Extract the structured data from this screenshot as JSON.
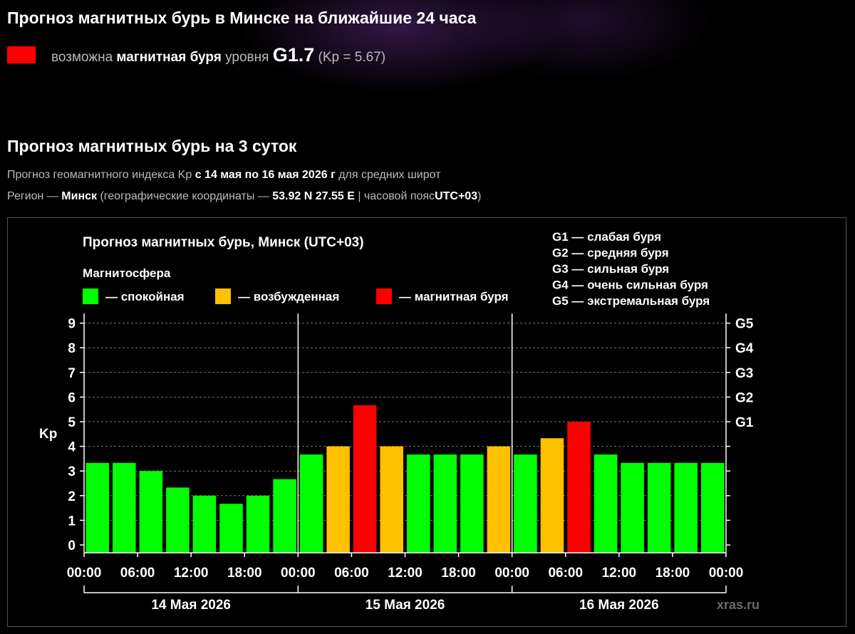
{
  "header": {
    "title": "Прогноз магнитных бурь в Минске на ближайшие 24 часа",
    "alert": {
      "color": "#ff0000",
      "prefix": "возможна",
      "bold": "магнитная буря",
      "middle": "уровня",
      "level": "G1.7",
      "kp": "(Kp = 5.67)"
    }
  },
  "section": {
    "title": "Прогноз магнитных бурь на 3 суток",
    "line1": {
      "a": "Прогноз геомагнитного индекса Kp",
      "b": "с 14 мая по 16 мая 2026 г",
      "c": "для средних широт"
    },
    "line2": {
      "a": "Регион —",
      "b": "Минск",
      "c": "(географические координаты —",
      "d": "53.92 N 27.55 E",
      "e": "| часовой пояс",
      "f": "UTC+03",
      "g": ")"
    }
  },
  "chart_data": {
    "type": "bar",
    "title": "Прогноз магнитных бурь, Минск (UTC+03)",
    "legend_title": "Магнитосфера",
    "legend": [
      {
        "label": "— спокойная",
        "color": "#00ff00"
      },
      {
        "label": "— возбужденная",
        "color": "#ffc000"
      },
      {
        "label": "— магнитная буря",
        "color": "#ff0000"
      }
    ],
    "g_legend": [
      "G1 — слабая буря",
      "G2 — средняя буря",
      "G3 — сильная буря",
      "G4 — очень сильная буря",
      "G5 — экстремальная буря"
    ],
    "ylabel": "Kp",
    "ylim": [
      0,
      9
    ],
    "yticks": [
      "0",
      "1",
      "2",
      "3",
      "4",
      "5",
      "6",
      "7",
      "8",
      "9"
    ],
    "right_ticks": [
      {
        "value": 5,
        "label": "G1"
      },
      {
        "value": 6,
        "label": "G2"
      },
      {
        "value": 7,
        "label": "G3"
      },
      {
        "value": 8,
        "label": "G4"
      },
      {
        "value": 9,
        "label": "G5"
      }
    ],
    "xticks": [
      "00:00",
      "06:00",
      "12:00",
      "18:00",
      "00:00",
      "06:00",
      "12:00",
      "18:00",
      "00:00",
      "06:00",
      "12:00",
      "18:00",
      "00:00"
    ],
    "days": [
      "14 Мая 2026",
      "15 Мая 2026",
      "16 Мая 2026"
    ],
    "values": [
      3.33,
      3.33,
      3.0,
      2.33,
      2.0,
      1.67,
      2.0,
      2.67,
      3.67,
      4.0,
      5.67,
      4.0,
      3.67,
      3.67,
      3.67,
      4.0,
      3.67,
      4.33,
      5.0,
      3.67,
      3.33,
      3.33,
      3.33,
      3.33
    ],
    "grid": true,
    "watermark": "xras.ru"
  }
}
